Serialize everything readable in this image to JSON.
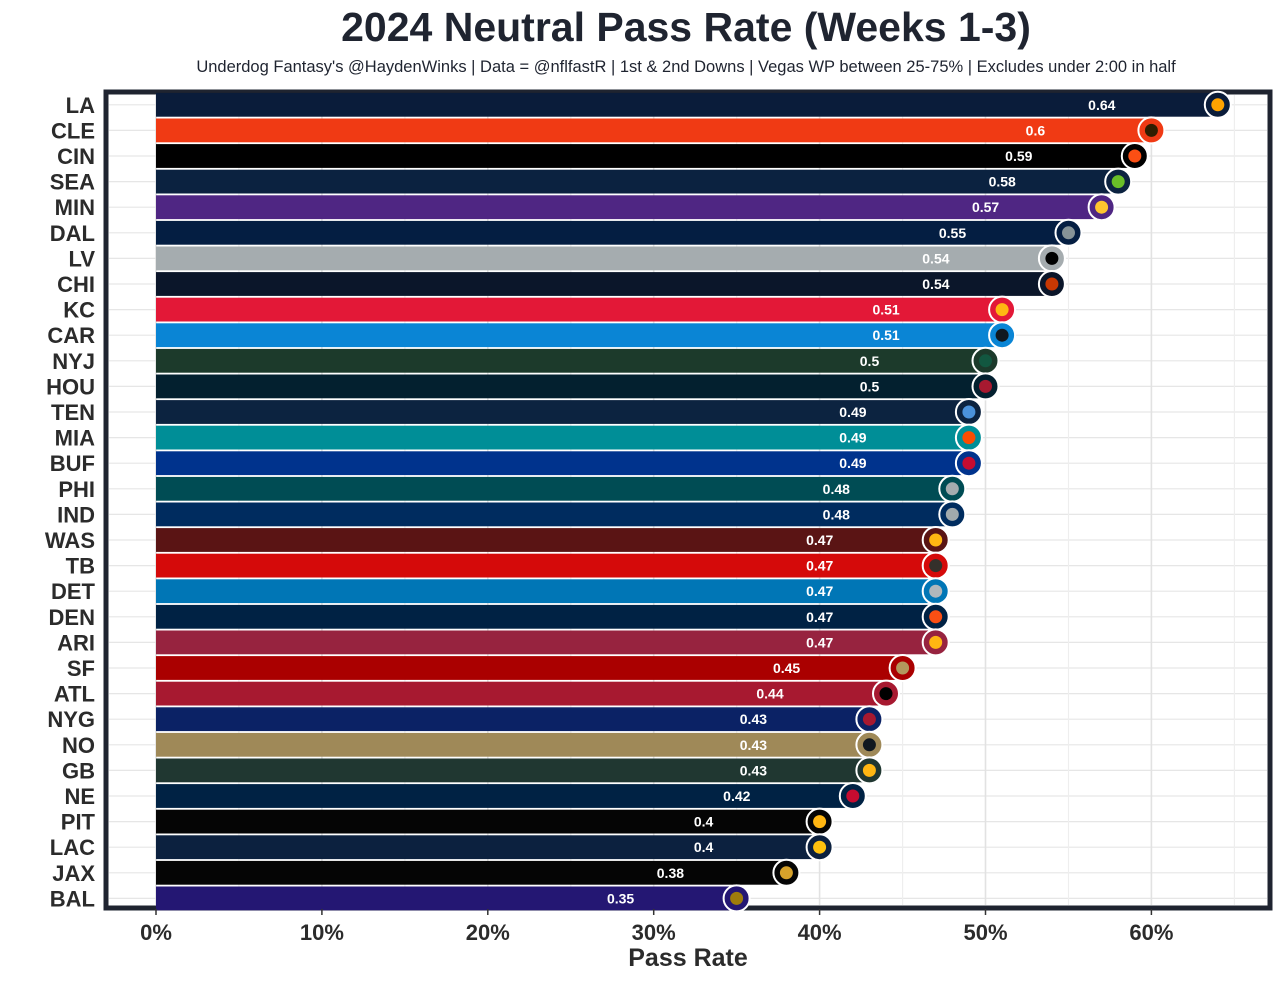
{
  "chart_data": {
    "type": "bar",
    "orientation": "horizontal",
    "title": "2024 Neutral Pass Rate (Weeks 1-3)",
    "subtitle": "Underdog Fantasy's @HaydenWinks | Data = @nflfastR | 1st & 2nd Downs | Vegas WP between 25-75% | Excludes under 2:00 in half",
    "xlabel": "Pass Rate",
    "ylabel": "",
    "xlim": [
      0,
      0.65
    ],
    "x_ticks": [
      0,
      0.1,
      0.2,
      0.3,
      0.4,
      0.5,
      0.6
    ],
    "x_tick_labels": [
      "0%",
      "10%",
      "20%",
      "30%",
      "40%",
      "50%",
      "60%"
    ],
    "grid": true,
    "categories": [
      "LA",
      "CLE",
      "CIN",
      "SEA",
      "MIN",
      "DAL",
      "LV",
      "CHI",
      "KC",
      "CAR",
      "NYJ",
      "HOU",
      "TEN",
      "MIA",
      "BUF",
      "PHI",
      "IND",
      "WAS",
      "TB",
      "DET",
      "DEN",
      "ARI",
      "SF",
      "ATL",
      "NYG",
      "NO",
      "GB",
      "NE",
      "PIT",
      "LAC",
      "JAX",
      "BAL"
    ],
    "values": [
      0.64,
      0.6,
      0.59,
      0.58,
      0.57,
      0.55,
      0.54,
      0.54,
      0.51,
      0.51,
      0.5,
      0.5,
      0.49,
      0.49,
      0.49,
      0.48,
      0.48,
      0.47,
      0.47,
      0.47,
      0.47,
      0.47,
      0.45,
      0.44,
      0.43,
      0.43,
      0.43,
      0.42,
      0.4,
      0.4,
      0.38,
      0.35
    ],
    "data_labels": [
      "0.64",
      "0.6",
      "0.59",
      "0.58",
      "0.57",
      "0.55",
      "0.54",
      "0.54",
      "0.51",
      "0.51",
      "0.5",
      "0.5",
      "0.49",
      "0.49",
      "0.49",
      "0.48",
      "0.48",
      "0.47",
      "0.47",
      "0.47",
      "0.47",
      "0.47",
      "0.45",
      "0.44",
      "0.43",
      "0.43",
      "0.43",
      "0.42",
      "0.4",
      "0.4",
      "0.38",
      "0.35"
    ],
    "bar_colors": [
      "#0a1c3a",
      "#f03a14",
      "#000000",
      "#0b2240",
      "#4f2683",
      "#041e42",
      "#a5acaf",
      "#0b162a",
      "#e31837",
      "#0a85d5",
      "#1c3a2b",
      "#03202f",
      "#0c2340",
      "#008e97",
      "#00338d",
      "#004c54",
      "#002c5f",
      "#5a1414",
      "#d50a0a",
      "#0076b6",
      "#002244",
      "#97233f",
      "#aa0000",
      "#a71930",
      "#0b2265",
      "#9f8958",
      "#203731",
      "#002244",
      "#050505",
      "#0c213f",
      "#050505",
      "#241773"
    ],
    "logo_accents": [
      "#ffa300",
      "#311d00",
      "#fb4f14",
      "#69be28",
      "#ffc62f",
      "#869397",
      "#000000",
      "#c83803",
      "#ffb612",
      "#101820",
      "#125740",
      "#a71930",
      "#4b92db",
      "#fc4c02",
      "#c60c30",
      "#a5acaf",
      "#a2aaad",
      "#ffb612",
      "#34302b",
      "#b0b7bc",
      "#fb4f14",
      "#ffb612",
      "#b3995d",
      "#000000",
      "#a71930",
      "#101820",
      "#ffb612",
      "#c60c30",
      "#ffb612",
      "#ffc20e",
      "#d7a22a",
      "#9e7c0c"
    ],
    "logo_icons": [
      "rams-logo",
      "browns-helmet-logo",
      "bengals-logo",
      "seahawks-logo",
      "vikings-logo",
      "cowboys-star-logo",
      "raiders-shield-logo",
      "bears-c-logo",
      "chiefs-arrowhead-logo",
      "panthers-logo",
      "jets-logo",
      "texans-logo",
      "titans-logo",
      "dolphins-logo",
      "bills-logo",
      "eagles-logo",
      "colts-horseshoe-logo",
      "commanders-w-logo",
      "buccaneers-flag-logo",
      "lions-logo",
      "broncos-logo",
      "cardinals-logo",
      "49ers-oval-logo",
      "falcons-logo",
      "giants-ny-logo",
      "saints-fleur-de-lis-logo",
      "packers-g-logo",
      "patriots-logo",
      "steelers-logo",
      "chargers-bolt-logo",
      "jaguars-logo",
      "ravens-logo"
    ]
  }
}
